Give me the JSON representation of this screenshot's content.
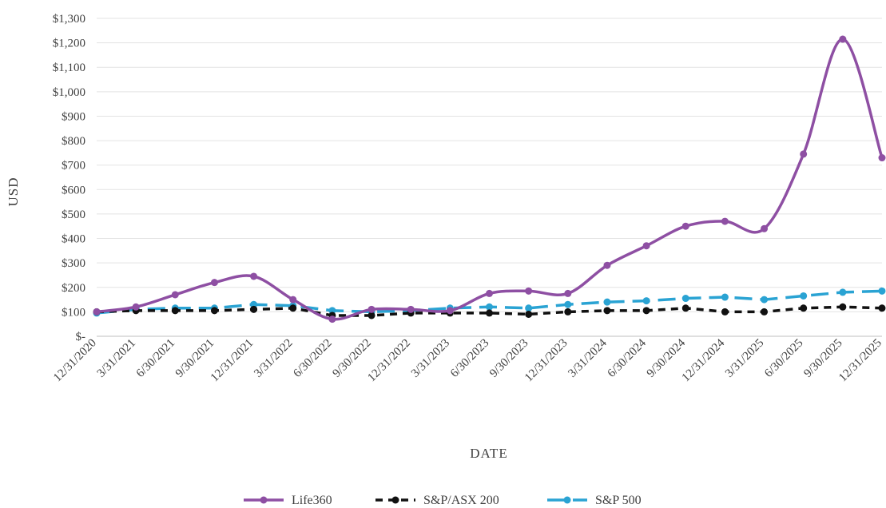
{
  "chart_data": {
    "type": "line",
    "xlabel": "DATE",
    "ylabel": "USD",
    "ylim": [
      0,
      1300
    ],
    "yticks": [
      {
        "value": 0,
        "label": "$-"
      },
      {
        "value": 100,
        "label": "$100"
      },
      {
        "value": 200,
        "label": "$200"
      },
      {
        "value": 300,
        "label": "$300"
      },
      {
        "value": 400,
        "label": "$400"
      },
      {
        "value": 500,
        "label": "$500"
      },
      {
        "value": 600,
        "label": "$600"
      },
      {
        "value": 700,
        "label": "$700"
      },
      {
        "value": 800,
        "label": "$800"
      },
      {
        "value": 900,
        "label": "$900"
      },
      {
        "value": 1000,
        "label": "$1,000"
      },
      {
        "value": 1100,
        "label": "$1,100"
      },
      {
        "value": 1200,
        "label": "$1,200"
      },
      {
        "value": 1300,
        "label": "$1,300"
      }
    ],
    "grid": "horizontal",
    "legend_position": "bottom",
    "categories": [
      "12/31/2020",
      "3/31/2021",
      "6/30/2021",
      "9/30/2021",
      "12/31/2021",
      "3/31/2022",
      "6/30/2022",
      "9/30/2022",
      "12/31/2022",
      "3/31/2023",
      "6/30/2023",
      "9/30/2023",
      "12/31/2023",
      "3/31/2024",
      "6/30/2024",
      "9/30/2024",
      "12/31/2024",
      "3/31/2025",
      "6/30/2025",
      "9/30/2025",
      "12/31/2025"
    ],
    "series": [
      {
        "name": "Life360",
        "color": "#8e4fa3",
        "style": "solid-smooth",
        "values": [
          100,
          120,
          170,
          220,
          245,
          150,
          70,
          110,
          110,
          105,
          175,
          185,
          175,
          290,
          370,
          450,
          470,
          440,
          745,
          1215,
          730
        ]
      },
      {
        "name": "S&P/ASX 200",
        "color": "#111111",
        "style": "dashed",
        "values": [
          100,
          105,
          105,
          105,
          110,
          115,
          85,
          85,
          95,
          95,
          95,
          90,
          100,
          105,
          105,
          115,
          100,
          100,
          115,
          120,
          115
        ]
      },
      {
        "name": "S&P 500",
        "color": "#2aa3d3",
        "style": "long-dashed",
        "values": [
          95,
          110,
          115,
          115,
          130,
          125,
          105,
          100,
          105,
          115,
          120,
          115,
          130,
          140,
          145,
          155,
          160,
          150,
          165,
          180,
          185
        ]
      }
    ]
  }
}
